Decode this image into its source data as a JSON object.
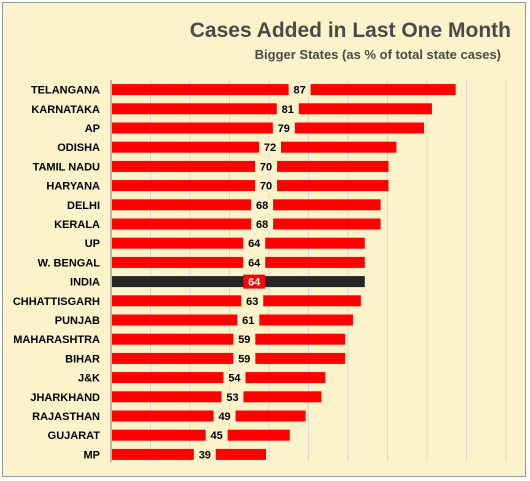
{
  "chart_data": {
    "type": "bar",
    "orientation": "horizontal",
    "title": "Cases Added in Last One Month",
    "subtitle": "Bigger States (as % of total state cases)",
    "categories": [
      "TELANGANA",
      "KARNATAKA",
      "AP",
      "ODISHA",
      "TAMIL NADU",
      "HARYANA",
      "DELHI",
      "KERALA",
      "UP",
      "W. BENGAL",
      "INDIA",
      "CHHATTISGARH",
      "PUNJAB",
      "MAHARASHTRA",
      "BIHAR",
      "J&K",
      "JHARKHAND",
      "RAJASTHAN",
      "GUJARAT",
      "MP"
    ],
    "values": [
      87,
      81,
      79,
      72,
      70,
      70,
      68,
      68,
      64,
      64,
      64,
      63,
      61,
      59,
      59,
      54,
      53,
      49,
      45,
      39
    ],
    "highlight_category": "INDIA",
    "colors": {
      "bar": "#ff0000",
      "highlight_bar": "#262626",
      "highlight_label_bg": "#ff0000",
      "background": "#fdf3cb",
      "grid": "#d9d9d9"
    },
    "xlim": [
      0,
      100
    ],
    "grid": "vertical",
    "data_labels": true,
    "legend": "none"
  }
}
